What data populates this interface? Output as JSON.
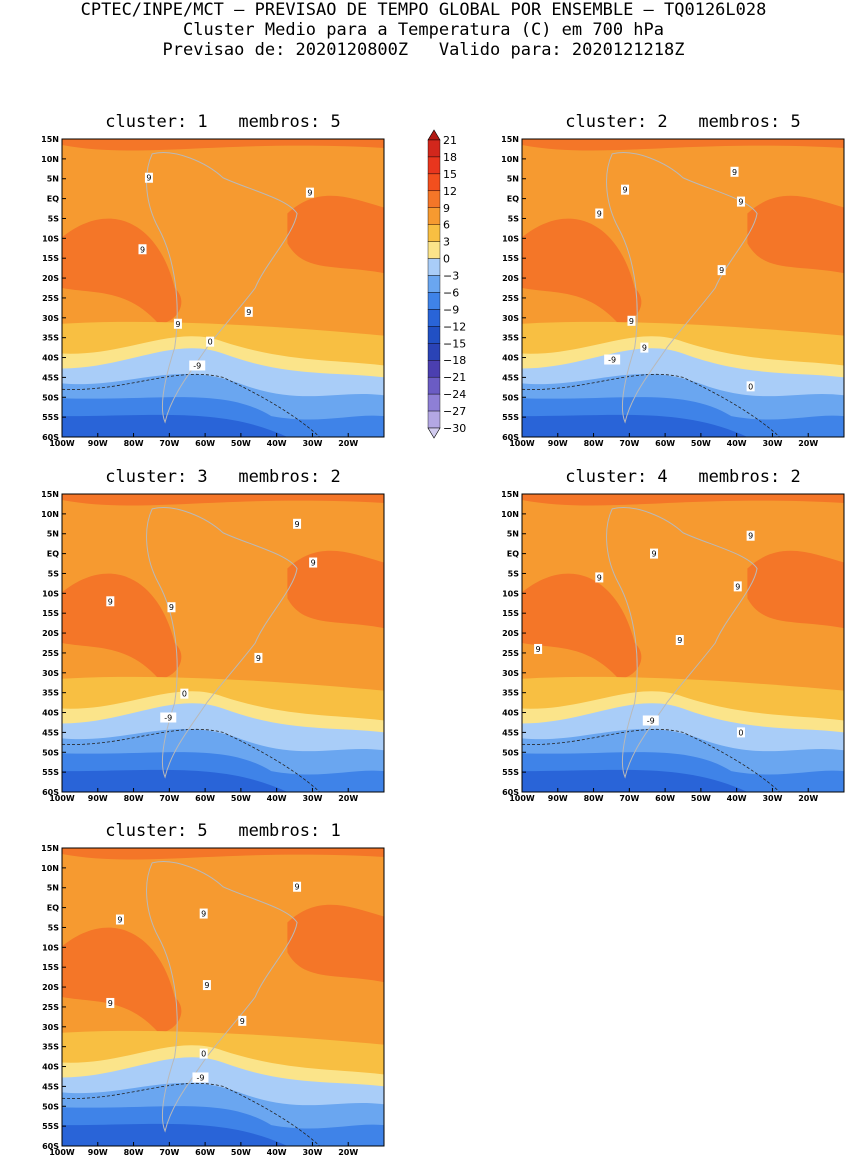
{
  "header": {
    "line1": "CPTEC/INPE/MCT – PREVISAO DE TEMPO GLOBAL POR ENSEMBLE – TQ0126L028",
    "line2": "Cluster Medio para a Temperatura (C) em 700 hPa",
    "line3": "Previsao de: 2020120800Z   Valido para: 2020121218Z"
  },
  "chart_data": {
    "type": "heatmap",
    "title": "Cluster Medio para a Temperatura (C) em 700 hPa",
    "variable": "Temperatura (C)",
    "level": "700 hPa",
    "forecast_from": "2020120800Z",
    "valid_for": "2020121218Z",
    "lat_ticks": [
      "15N",
      "10N",
      "5N",
      "EQ",
      "5S",
      "10S",
      "15S",
      "20S",
      "25S",
      "30S",
      "35S",
      "40S",
      "45S",
      "50S",
      "55S",
      "60S"
    ],
    "lon_ticks": [
      "100W",
      "90W",
      "80W",
      "70W",
      "60W",
      "50W",
      "40W",
      "30W",
      "20W"
    ],
    "lat_range": [
      -60,
      15
    ],
    "lon_range": [
      -100,
      -10
    ],
    "colorbar": {
      "labels": [
        "21",
        "18",
        "15",
        "12",
        "9",
        "6",
        "3",
        "0",
        "-3",
        "-6",
        "-9",
        "-12",
        "-15",
        "-18",
        "-21",
        "-24",
        "-27",
        "-30"
      ],
      "colors": [
        "#b21b14",
        "#d2271c",
        "#e8361e",
        "#f24f1e",
        "#f47628",
        "#f69a30",
        "#f8bf42",
        "#fbe48a",
        "#a9cdf8",
        "#6aa6f0",
        "#3f83e8",
        "#2964d8",
        "#2150c4",
        "#2a43b6",
        "#4b3fb0",
        "#6b5cc4",
        "#8e7fd6",
        "#b3a7e4",
        "#d2ccef"
      ]
    },
    "panels": [
      {
        "title": "cluster: 1   membros: 5",
        "labels": [
          "9",
          "9",
          "9",
          "9",
          "9",
          "0",
          "-9"
        ]
      },
      {
        "title": "cluster: 2   membros: 5",
        "labels": [
          "9",
          "9",
          "9",
          "9",
          "9",
          "9",
          "9",
          "-9",
          "0"
        ]
      },
      {
        "title": "cluster: 3   membros: 2",
        "labels": [
          "9",
          "9",
          "9",
          "9",
          "9",
          "0",
          "-9"
        ]
      },
      {
        "title": "cluster: 4   membros: 2",
        "labels": [
          "9",
          "9",
          "9",
          "9",
          "9",
          "9",
          "-9",
          "0"
        ]
      },
      {
        "title": "cluster: 5   membros: 1",
        "labels": [
          "9",
          "9",
          "9",
          "9",
          "9",
          "9",
          "0",
          "-9"
        ]
      }
    ]
  }
}
